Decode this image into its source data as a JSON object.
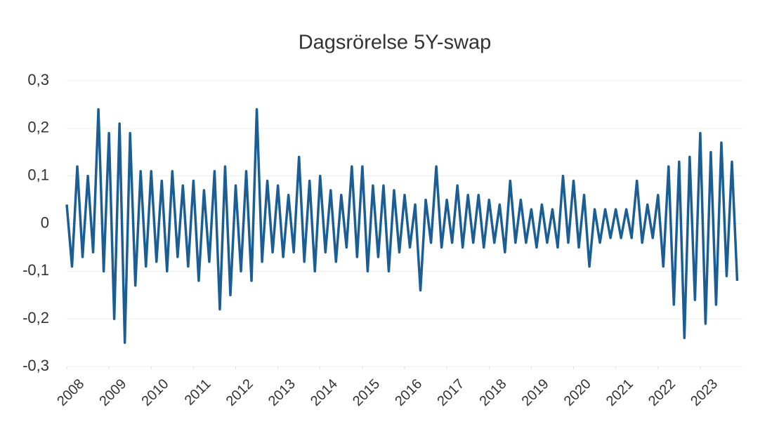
{
  "chart_data": {
    "type": "line",
    "title": "Dagsrörelse 5Y-swap",
    "x": [
      2008,
      2008.125,
      2008.25,
      2008.375,
      2008.5,
      2008.625,
      2008.75,
      2008.875,
      2009,
      2009.125,
      2009.25,
      2009.375,
      2009.5,
      2009.625,
      2009.75,
      2009.875,
      2010,
      2010.125,
      2010.25,
      2010.375,
      2010.5,
      2010.625,
      2010.75,
      2010.875,
      2011,
      2011.125,
      2011.25,
      2011.375,
      2011.5,
      2011.625,
      2011.75,
      2011.875,
      2012,
      2012.125,
      2012.25,
      2012.375,
      2012.5,
      2012.625,
      2012.75,
      2012.875,
      2013,
      2013.125,
      2013.25,
      2013.375,
      2013.5,
      2013.625,
      2013.75,
      2013.875,
      2014,
      2014.125,
      2014.25,
      2014.375,
      2014.5,
      2014.625,
      2014.75,
      2014.875,
      2015,
      2015.125,
      2015.25,
      2015.375,
      2015.5,
      2015.625,
      2015.75,
      2015.875,
      2016,
      2016.125,
      2016.25,
      2016.375,
      2016.5,
      2016.625,
      2016.75,
      2016.875,
      2017,
      2017.125,
      2017.25,
      2017.375,
      2017.5,
      2017.625,
      2017.75,
      2017.875,
      2018,
      2018.125,
      2018.25,
      2018.375,
      2018.5,
      2018.625,
      2018.75,
      2018.875,
      2019,
      2019.125,
      2019.25,
      2019.375,
      2019.5,
      2019.625,
      2019.75,
      2019.875,
      2020,
      2020.125,
      2020.25,
      2020.375,
      2020.5,
      2020.625,
      2020.75,
      2020.875,
      2021,
      2021.125,
      2021.25,
      2021.375,
      2021.5,
      2021.625,
      2021.75,
      2021.875,
      2022,
      2022.125,
      2022.25,
      2022.375,
      2022.5,
      2022.625,
      2022.75,
      2022.875,
      2023,
      2023.125,
      2023.25,
      2023.375,
      2023.5,
      2023.625,
      2023.75,
      2023.875
    ],
    "values": [
      0.04,
      -0.09,
      0.12,
      -0.07,
      0.1,
      -0.06,
      0.24,
      -0.1,
      0.19,
      -0.2,
      0.21,
      -0.25,
      0.19,
      -0.13,
      0.11,
      -0.09,
      0.11,
      -0.08,
      0.09,
      -0.1,
      0.11,
      -0.07,
      0.08,
      -0.09,
      0.09,
      -0.12,
      0.07,
      -0.08,
      0.11,
      -0.18,
      0.12,
      -0.15,
      0.08,
      -0.1,
      0.11,
      -0.12,
      0.24,
      -0.08,
      0.09,
      -0.06,
      0.08,
      -0.07,
      0.06,
      -0.06,
      0.14,
      -0.08,
      0.09,
      -0.1,
      0.1,
      -0.06,
      0.07,
      -0.08,
      0.06,
      -0.05,
      0.12,
      -0.07,
      0.12,
      -0.1,
      0.08,
      -0.07,
      0.08,
      -0.1,
      0.07,
      -0.06,
      0.06,
      -0.05,
      0.04,
      -0.14,
      0.05,
      -0.04,
      0.12,
      -0.05,
      0.05,
      -0.04,
      0.08,
      -0.05,
      0.06,
      -0.04,
      0.06,
      -0.05,
      0.05,
      -0.04,
      0.04,
      -0.06,
      0.09,
      -0.04,
      0.05,
      -0.04,
      0.03,
      -0.05,
      0.04,
      -0.04,
      0.03,
      -0.05,
      0.1,
      -0.04,
      0.09,
      -0.05,
      0.06,
      -0.09,
      0.03,
      -0.04,
      0.03,
      -0.03,
      0.03,
      -0.03,
      0.03,
      -0.03,
      0.09,
      -0.04,
      0.04,
      -0.03,
      0.06,
      -0.09,
      0.12,
      -0.17,
      0.13,
      -0.24,
      0.14,
      -0.16,
      0.19,
      -0.21,
      0.15,
      -0.17,
      0.17,
      -0.11,
      0.13,
      -0.12
    ],
    "color": "#1b5e96",
    "xlim": [
      2008,
      2024
    ],
    "xticks": [
      2008,
      2009,
      2010,
      2011,
      2012,
      2013,
      2014,
      2015,
      2016,
      2017,
      2018,
      2019,
      2020,
      2021,
      2022,
      2023
    ],
    "ylim": [
      -0.3,
      0.3
    ],
    "yticks": [
      {
        "value": -0.3,
        "label": "-0,3"
      },
      {
        "value": -0.2,
        "label": "-0,2"
      },
      {
        "value": -0.1,
        "label": "-0,1"
      },
      0,
      {
        "value": 0.1,
        "label": "0,1"
      },
      {
        "value": 0.2,
        "label": "0,2"
      },
      {
        "value": 0.3,
        "label": "0,3"
      }
    ],
    "grid": true
  }
}
